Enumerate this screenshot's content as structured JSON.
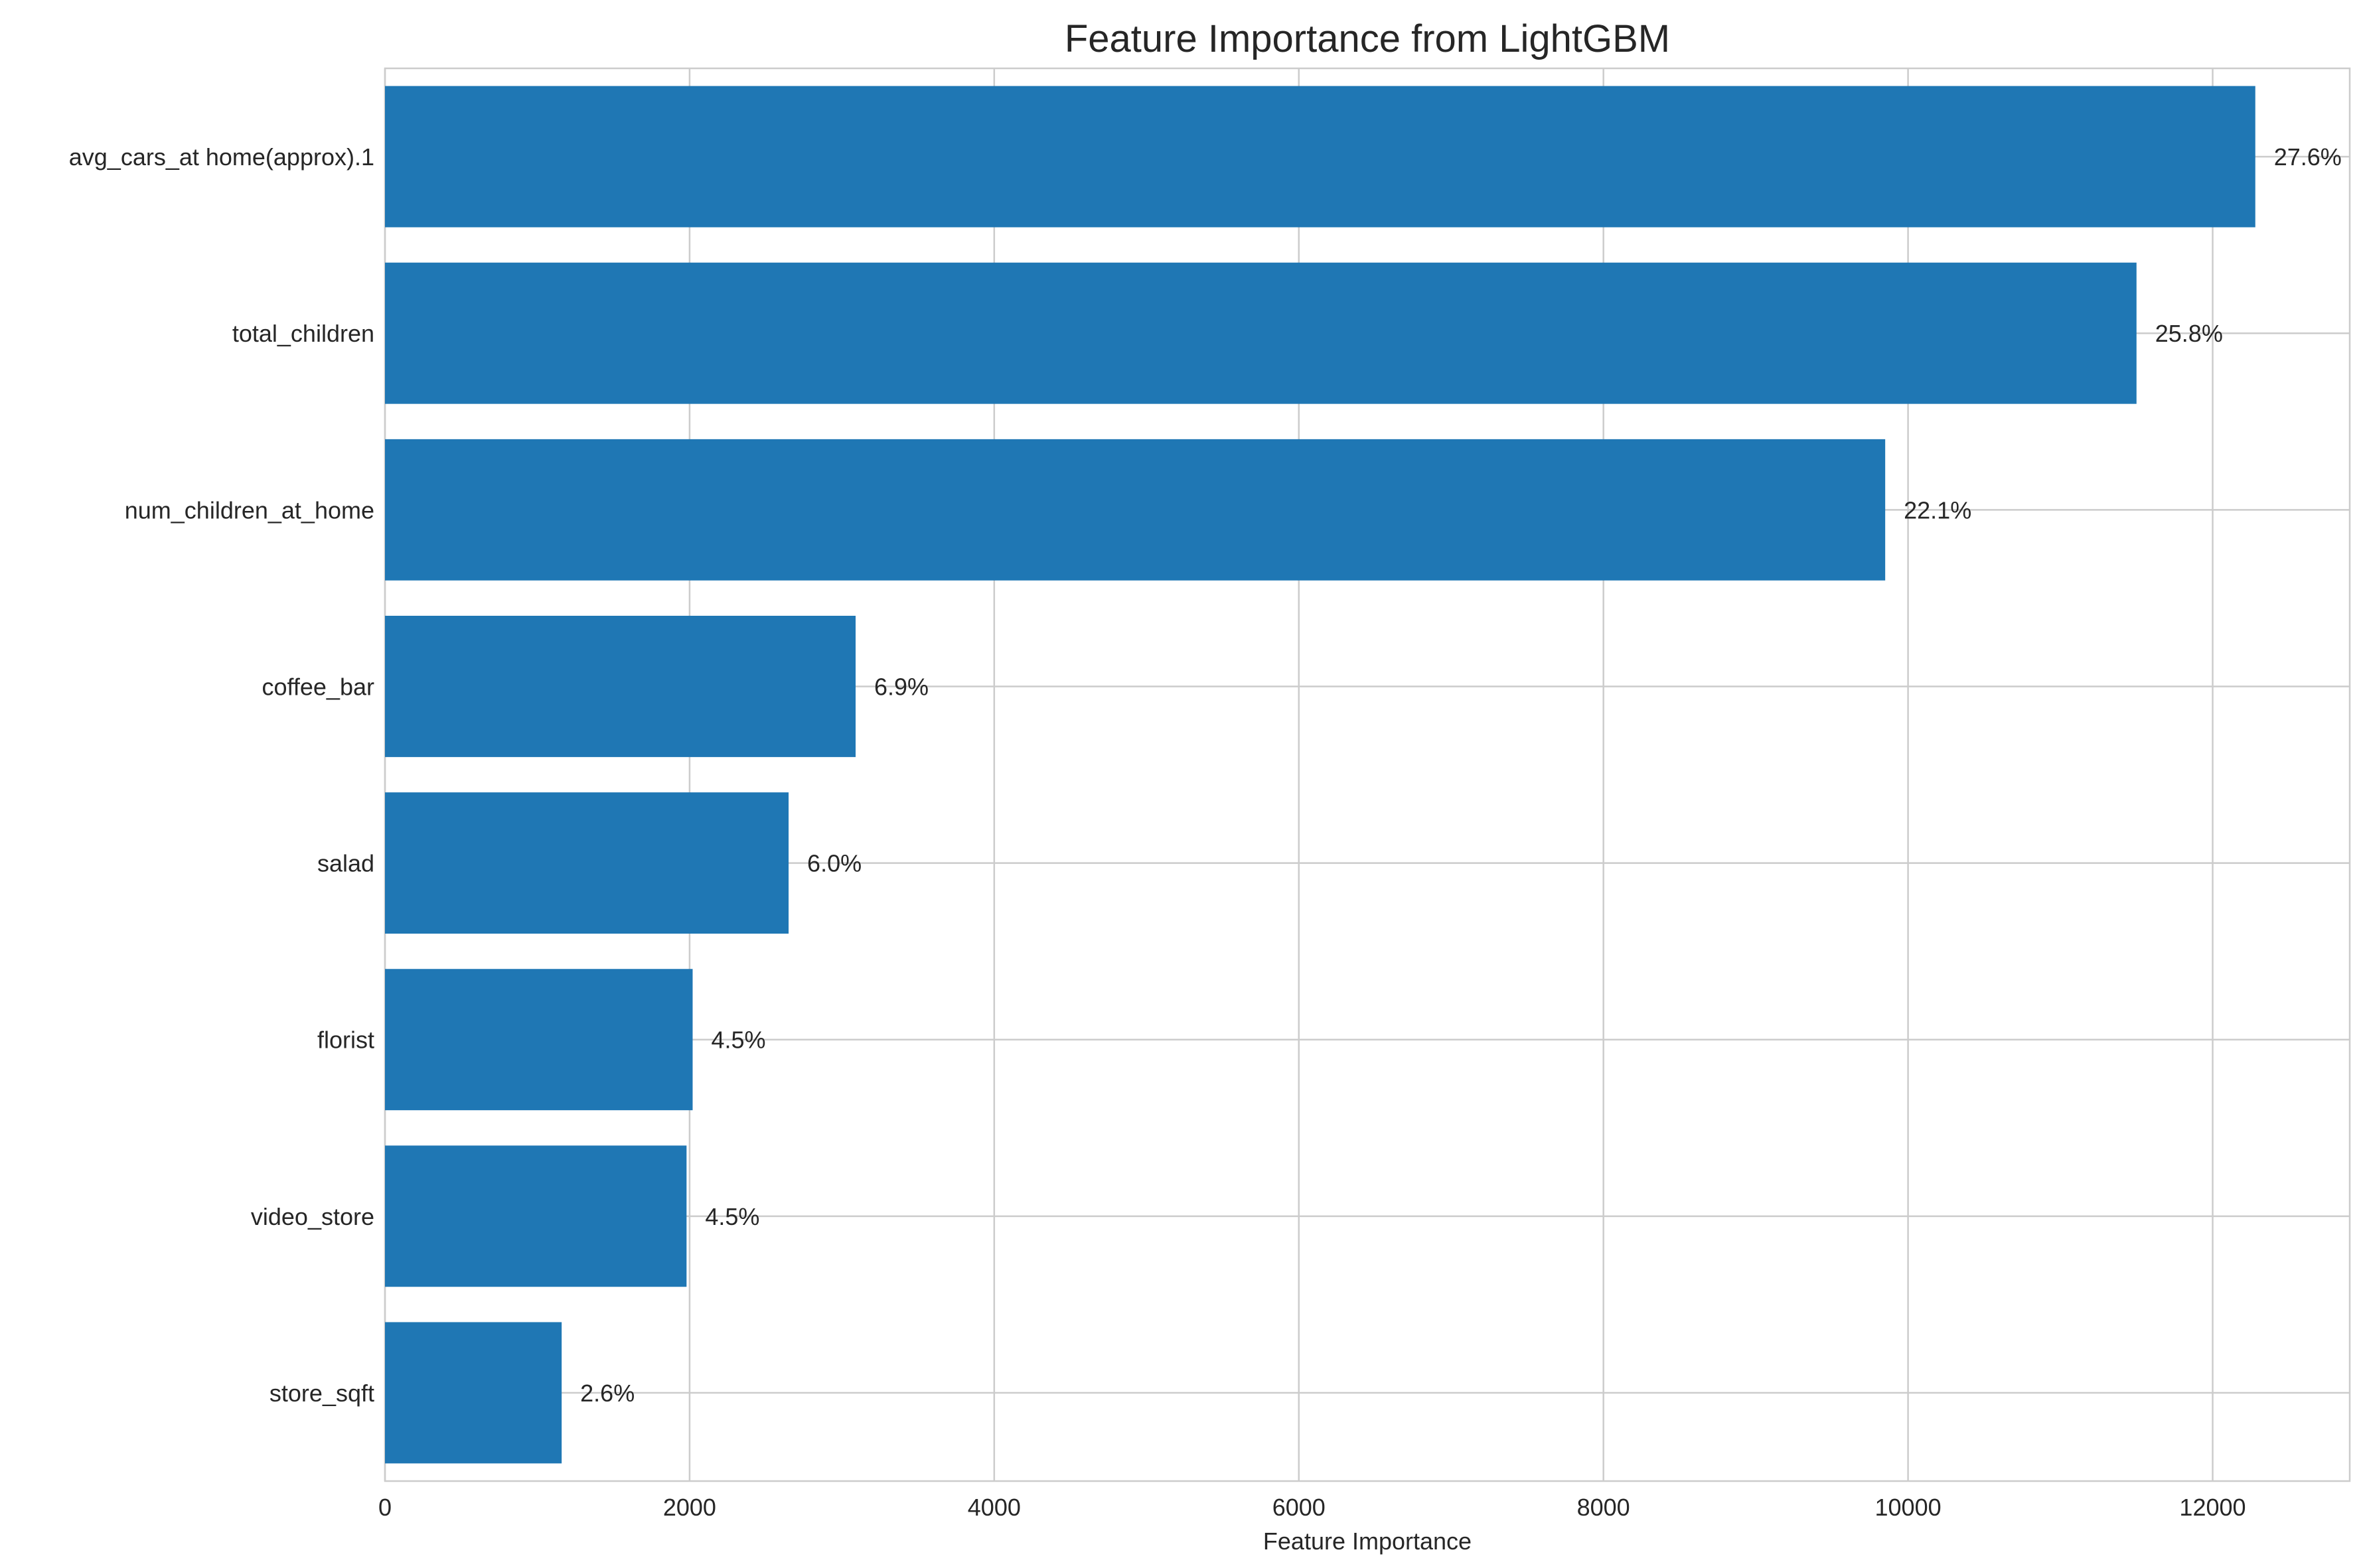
{
  "chart_data": {
    "type": "bar",
    "orientation": "horizontal",
    "title": "Feature Importance from LightGBM",
    "xlabel": "Feature Importance",
    "ylabel": "",
    "xlim": [
      0,
      12900
    ],
    "xticks": [
      0,
      2000,
      4000,
      6000,
      8000,
      10000,
      12000
    ],
    "grid": true,
    "bar_color": "#1f77b4",
    "categories": [
      "avg_cars_at home(approx).1",
      "total_children",
      "num_children_at_home",
      "coffee_bar",
      "salad",
      "florist",
      "video_store",
      "store_sqft"
    ],
    "values": [
      12280,
      11500,
      9850,
      3090,
      2650,
      2020,
      1980,
      1160
    ],
    "labels": [
      "27.6%",
      "25.8%",
      "22.1%",
      "6.9%",
      "6.0%",
      "4.5%",
      "4.5%",
      "2.6%"
    ]
  }
}
